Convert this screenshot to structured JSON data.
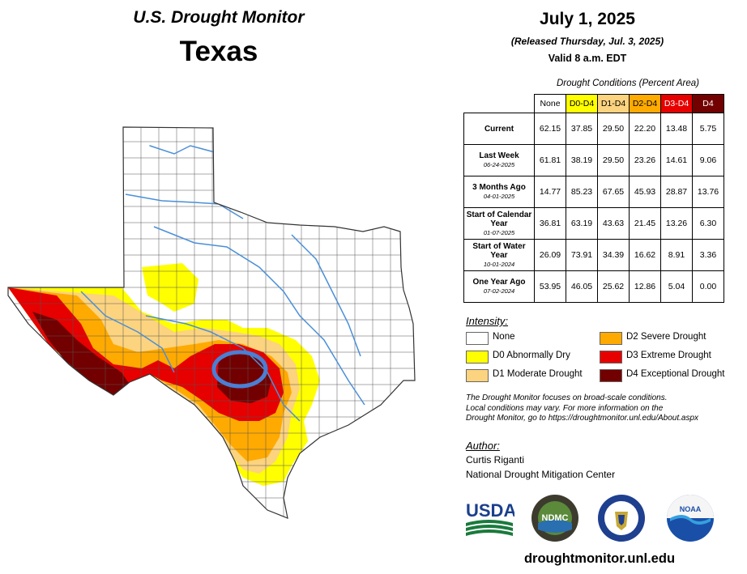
{
  "header": {
    "monitor_title": "U.S. Drought Monitor",
    "state": "Texas",
    "date": "July 1, 2025",
    "released": "(Released Thursday, Jul. 3, 2025)",
    "valid": "Valid 8 a.m. EDT"
  },
  "table": {
    "caption": "Drought Conditions (Percent Area)",
    "columns": [
      "None",
      "D0-D4",
      "D1-D4",
      "D2-D4",
      "D3-D4",
      "D4"
    ],
    "column_colors": [
      "#ffffff",
      "#ffff00",
      "#fcd37f",
      "#ffaa00",
      "#e60000",
      "#730000"
    ],
    "rows": [
      {
        "label": "Current",
        "sub": "",
        "values": [
          "62.15",
          "37.85",
          "29.50",
          "22.20",
          "13.48",
          "5.75"
        ]
      },
      {
        "label": "Last Week",
        "sub": "06-24-2025",
        "values": [
          "61.81",
          "38.19",
          "29.50",
          "23.26",
          "14.61",
          "9.06"
        ]
      },
      {
        "label": "3 Months Ago",
        "sub": "04-01-2025",
        "values": [
          "14.77",
          "85.23",
          "67.65",
          "45.93",
          "28.87",
          "13.76"
        ]
      },
      {
        "label": "Start of Calendar Year",
        "sub": "01-07-2025",
        "values": [
          "36.81",
          "63.19",
          "43.63",
          "21.45",
          "13.26",
          "6.30"
        ]
      },
      {
        "label": "Start of Water Year",
        "sub": "10-01-2024",
        "values": [
          "26.09",
          "73.91",
          "34.39",
          "16.62",
          "8.91",
          "3.36"
        ]
      },
      {
        "label": "One Year Ago",
        "sub": "07-02-2024",
        "values": [
          "53.95",
          "46.05",
          "25.62",
          "12.86",
          "5.04",
          "0.00"
        ]
      }
    ]
  },
  "legend": {
    "title": "Intensity:",
    "items": [
      {
        "label": "None",
        "color": "#ffffff"
      },
      {
        "label": "D0 Abnormally Dry",
        "color": "#ffff00"
      },
      {
        "label": "D1 Moderate Drought",
        "color": "#fcd37f"
      },
      {
        "label": "D2 Severe Drought",
        "color": "#ffaa00"
      },
      {
        "label": "D3 Extreme Drought",
        "color": "#e60000"
      },
      {
        "label": "D4 Exceptional Drought",
        "color": "#730000"
      }
    ]
  },
  "note": {
    "line1": "The Drought Monitor focuses on broad-scale conditions.",
    "line2": "Local conditions may vary. For more information on the",
    "line3": "Drought Monitor, go to https://droughtmonitor.unl.edu/About.aspx"
  },
  "author": {
    "title": "Author:",
    "name": "Curtis Riganti",
    "org": "National Drought Mitigation Center"
  },
  "logos": {
    "usda": "USDA",
    "ndmc": "NDMC",
    "noaa": "NOAA"
  },
  "footer_url": "droughtmonitor.unl.edu",
  "map": {
    "highlight_color": "#4a7fd4",
    "river_color": "#4a8fd8"
  }
}
